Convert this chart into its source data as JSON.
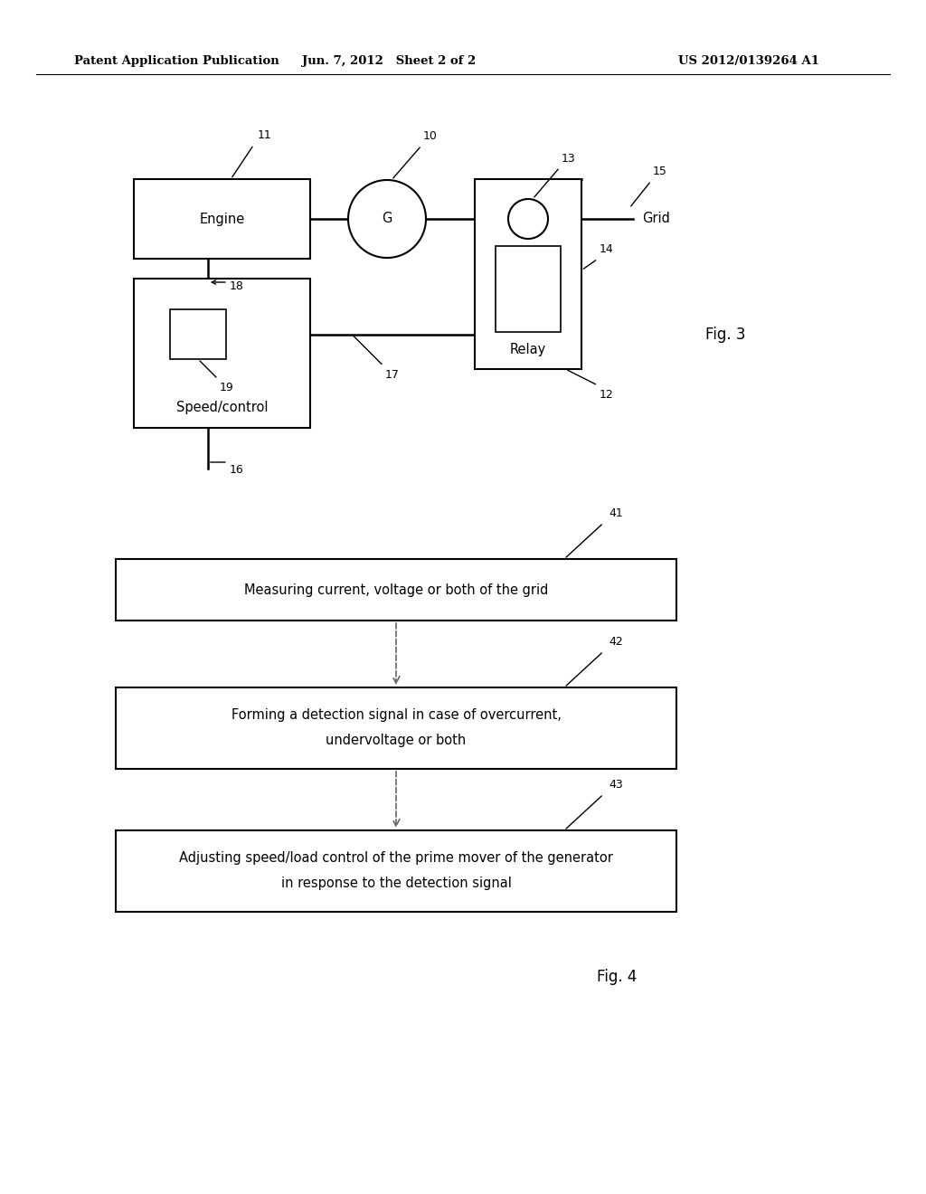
{
  "bg_color": "#ffffff",
  "header_left": "Patent Application Publication",
  "header_mid": "Jun. 7, 2012   Sheet 2 of 2",
  "header_right": "US 2012/0139264 A1",
  "fig3_label": "Fig. 3",
  "fig4_label": "Fig. 4",
  "fig3": {
    "engine_label": "Engine",
    "engine_num": "11",
    "generator_label": "G",
    "generator_num": "10",
    "relay_label": "Relay",
    "relay_num": "12",
    "relay_box_num": "14",
    "switch_num": "13",
    "grid_label": "Grid",
    "grid_num": "15",
    "speed_label": "Speed/control",
    "speed_inner_num": "19",
    "speed_num": "18",
    "wire_num_17": "17",
    "wire_num_16": "16"
  },
  "fig4": {
    "box1_text": "Measuring current, voltage or both of the grid",
    "box1_num": "41",
    "box2_text1": "Forming a detection signal in case of overcurrent,",
    "box2_text2": "undervoltage or both",
    "box2_num": "42",
    "box3_text1": "Adjusting speed/load control of the prime mover of the generator",
    "box3_text2": "in response to the detection signal",
    "box3_num": "43"
  }
}
